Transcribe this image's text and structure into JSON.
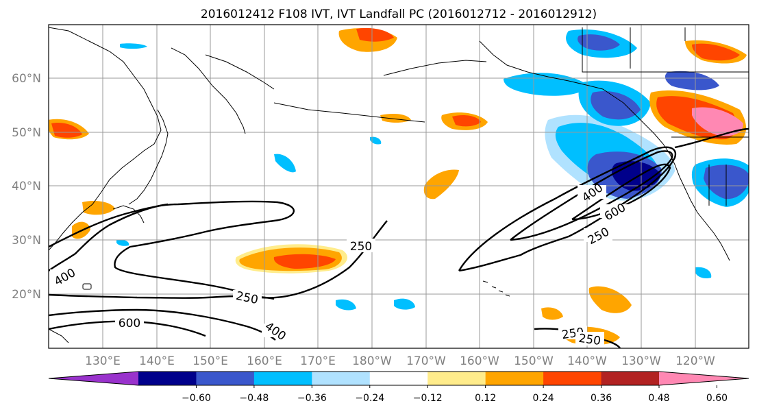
{
  "title": "2016012412 F108 IVT, IVT Landfall PC (2016012712 - 2016012912)",
  "map": {
    "lat_labels": [
      "60°N",
      "50°N",
      "40°N",
      "30°N",
      "20°N"
    ],
    "lon_labels": [
      "130°E",
      "140°E",
      "150°E",
      "160°E",
      "170°E",
      "180°W",
      "170°W",
      "160°W",
      "150°W",
      "140°W",
      "130°W",
      "120°W"
    ],
    "contour_labels": [
      "400",
      "250",
      "250",
      "600",
      "250",
      "400",
      "600",
      "400",
      "250",
      "250"
    ]
  },
  "colorbar": {
    "ticks": [
      "−0.60",
      "−0.48",
      "−0.36",
      "−0.24",
      "−0.12",
      "0.12",
      "0.24",
      "0.36",
      "0.48",
      "0.60"
    ],
    "colors": [
      "#9932cc",
      "#00008b",
      "#3a57cc",
      "#00bfff",
      "#b0e2ff",
      "#ffffff",
      "#ffec8b",
      "#ffa500",
      "#ff4500",
      "#b22222",
      "#ff88b3"
    ]
  },
  "colors": {
    "grid": "#999999",
    "coast": "#000000",
    "contour": "#000000"
  }
}
